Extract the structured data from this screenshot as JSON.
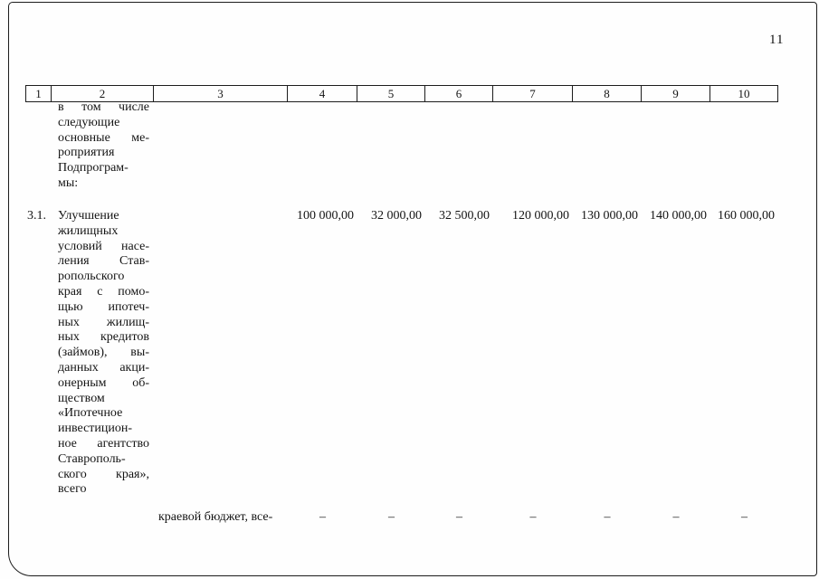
{
  "page": {
    "number": "11"
  },
  "colors": {
    "ink": "#141414",
    "paper": "#fefefe"
  },
  "table": {
    "header": [
      "1",
      "2",
      "3",
      "4",
      "5",
      "6",
      "7",
      "8",
      "9",
      "10"
    ],
    "intro": {
      "lines": [
        "в том числе",
        "следующие",
        "основные ме-",
        "роприятия",
        "Подпрограм-",
        "мы:"
      ]
    },
    "row31": {
      "num": "3.1.",
      "name_lines": [
        "Улучшение",
        "жилищных",
        "условий насе-",
        "ления Став-",
        "ропольского",
        "края с помо-",
        "щью ипотеч-",
        "ных жилищ-",
        "ных кредитов",
        "(займов), вы-",
        "данных акци-",
        "онерным об-",
        "ществом",
        "«Ипотечное",
        "инвестицион-",
        "ное агентство",
        "Ставрополь-",
        "ского края»,",
        "всего"
      ],
      "values": [
        "100 000,00",
        "32 000,00",
        "32 500,00",
        "120 000,00",
        "130 000,00",
        "140 000,00",
        "160 000,00"
      ]
    },
    "budget_row": {
      "label": "краевой бюджет, все-",
      "values": [
        "–",
        "–",
        "–",
        "–",
        "–",
        "–",
        "–"
      ]
    }
  }
}
